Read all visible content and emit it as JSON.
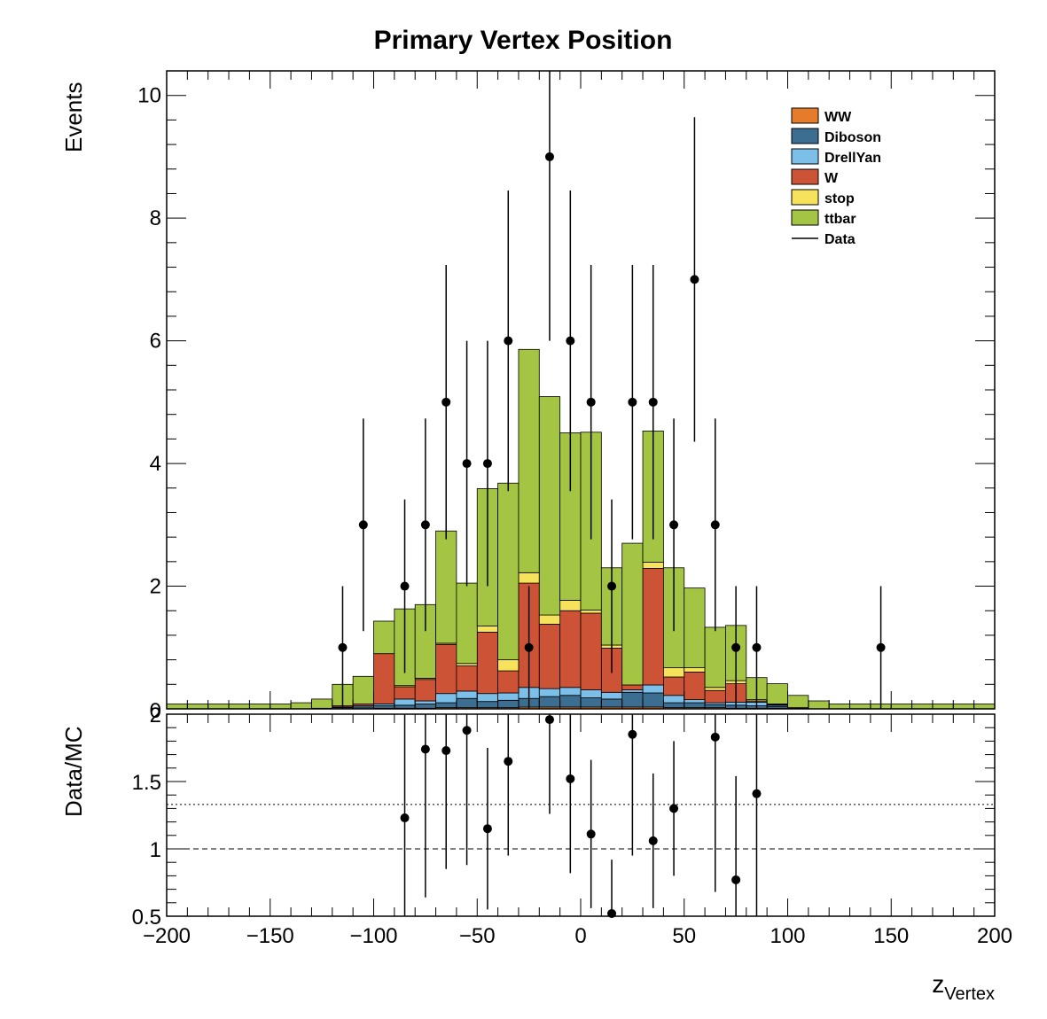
{
  "chart_data": [
    {
      "panel": "main",
      "type": "bar",
      "stacked": true,
      "title": "Primary Vertex Position",
      "ylabel": "Events",
      "xlim": [
        -200,
        200
      ],
      "ylim": [
        0,
        10.4
      ],
      "bin_edges": [
        -200,
        -190,
        -180,
        -170,
        -160,
        -150,
        -140,
        -130,
        -120,
        -110,
        -100,
        -90,
        -80,
        -70,
        -60,
        -50,
        -40,
        -30,
        -20,
        -10,
        0,
        10,
        20,
        30,
        40,
        50,
        60,
        70,
        80,
        90,
        100,
        110,
        120,
        130,
        140,
        150,
        160,
        170,
        180,
        190,
        200
      ],
      "x_ticks": [
        -200,
        -150,
        -100,
        -50,
        0,
        50,
        100,
        150,
        200
      ],
      "x_tick_labels": [
        "−200",
        "−150",
        "−100",
        "−50",
        "0",
        "50",
        "100",
        "150",
        "200"
      ],
      "y_ticks": [
        2,
        4,
        6,
        8,
        10
      ],
      "y_tick_labels": [
        "2",
        "4",
        "6",
        "8",
        "10"
      ],
      "series": [
        {
          "name": "WW",
          "color": "#e57c2b",
          "values": [
            0,
            0,
            0,
            0,
            0,
            0,
            0,
            0,
            0,
            0,
            0.01,
            0.01,
            0.01,
            0.02,
            0.02,
            0.02,
            0.02,
            0.03,
            0.03,
            0.03,
            0.03,
            0.03,
            0.03,
            0.03,
            0.02,
            0.02,
            0.02,
            0.01,
            0.01,
            0.01,
            0,
            0,
            0,
            0,
            0,
            0,
            0,
            0,
            0,
            0
          ]
        },
        {
          "name": "Diboson",
          "color": "#3b6e91",
          "values": [
            0,
            0,
            0,
            0,
            0,
            0,
            0,
            0.01,
            0.02,
            0.03,
            0.04,
            0.05,
            0.07,
            0.08,
            0.15,
            0.1,
            0.12,
            0.14,
            0.17,
            0.19,
            0.15,
            0.13,
            0.24,
            0.23,
            0.08,
            0.08,
            0.05,
            0.05,
            0.04,
            0.03,
            0.01,
            0,
            0,
            0,
            0,
            0,
            0,
            0,
            0,
            0
          ]
        },
        {
          "name": "DrellYan",
          "color": "#7cbfe8",
          "values": [
            0,
            0,
            0,
            0,
            0,
            0,
            0,
            0,
            0.01,
            0.02,
            0.03,
            0.1,
            0.05,
            0.15,
            0.12,
            0.13,
            0.12,
            0.18,
            0.13,
            0.13,
            0.13,
            0.11,
            0.04,
            0.13,
            0.12,
            0.05,
            0.03,
            0.05,
            0.06,
            0.02,
            0.01,
            0,
            0,
            0,
            0,
            0,
            0,
            0,
            0,
            0
          ]
        },
        {
          "name": "W",
          "color": "#cd5337",
          "values": [
            0,
            0,
            0,
            0,
            0,
            0,
            0,
            0,
            0.02,
            0.03,
            0.82,
            0.2,
            0.35,
            0.8,
            0.41,
            1.0,
            0.36,
            1.7,
            1.05,
            1.25,
            1.25,
            0.72,
            0.08,
            1.9,
            0.3,
            0.45,
            0.2,
            0.3,
            0.02,
            0.01,
            0,
            0,
            0,
            0,
            0,
            0,
            0,
            0,
            0,
            0
          ]
        },
        {
          "name": "stop",
          "color": "#f6e25b",
          "values": [
            0,
            0,
            0,
            0,
            0,
            0,
            0,
            0,
            0,
            0,
            0,
            0.02,
            0.02,
            0.02,
            0.04,
            0.1,
            0.18,
            0.17,
            0.15,
            0.17,
            0.05,
            0.05,
            0,
            0.1,
            0.15,
            0.07,
            0.05,
            0.05,
            0.02,
            0.01,
            0,
            0,
            0,
            0,
            0,
            0,
            0,
            0,
            0,
            0
          ]
        },
        {
          "name": "ttbar",
          "color": "#a4c443",
          "values": [
            0.08,
            0.08,
            0.08,
            0.08,
            0.08,
            0.08,
            0.1,
            0.15,
            0.35,
            0.45,
            0.53,
            1.25,
            1.2,
            1.83,
            1.31,
            2.24,
            2.88,
            3.64,
            3.56,
            2.73,
            2.9,
            1.26,
            2.31,
            2.14,
            1.63,
            1.3,
            0.98,
            0.9,
            0.36,
            0.33,
            0.2,
            0.13,
            0.08,
            0.08,
            0.08,
            0.08,
            0.08,
            0.08,
            0.08,
            0.08
          ]
        }
      ],
      "data": {
        "name": "Data",
        "color": "#000000",
        "x": [
          -115,
          -105,
          -85,
          -75,
          -65,
          -55,
          -45,
          -35,
          -25,
          -15,
          -5,
          5,
          15,
          25,
          35,
          45,
          55,
          65,
          75,
          85,
          145
        ],
        "y": [
          1,
          3,
          2,
          3,
          5,
          4,
          4,
          6,
          1,
          9,
          6,
          5,
          2,
          5,
          5,
          3,
          7,
          3,
          1,
          1,
          1
        ]
      },
      "legend": {
        "position": "top-right",
        "entries": [
          "WW",
          "Diboson",
          "DrellYan",
          "W",
          "stop",
          "ttbar",
          "Data"
        ]
      }
    },
    {
      "panel": "ratio",
      "type": "scatter",
      "ylabel": "Data/MC",
      "xlabel_main": "z",
      "xlabel_sub": "Vertex",
      "xlim": [
        -200,
        200
      ],
      "ylim": [
        0.5,
        2.0
      ],
      "y_ticks": [
        0.5,
        1,
        1.5,
        2
      ],
      "y_tick_labels": [
        "0.5",
        "1",
        "1.5",
        "2"
      ],
      "reference_lines": [
        {
          "y": 1.0,
          "style": "dashed"
        },
        {
          "y": 1.33,
          "style": "dotted"
        }
      ],
      "points": {
        "x": [
          -85,
          -75,
          -65,
          -55,
          -45,
          -35,
          -15,
          -5,
          5,
          15,
          25,
          35,
          45,
          65,
          75,
          85
        ],
        "y": [
          1.23,
          1.74,
          1.73,
          1.88,
          1.15,
          1.65,
          1.96,
          1.52,
          1.11,
          0.52,
          1.85,
          1.06,
          1.3,
          1.83,
          0.77,
          1.41
        ],
        "err_lo": [
          1.0,
          1.1,
          0.88,
          1.0,
          0.6,
          0.7,
          0.7,
          0.7,
          0.55,
          0.4,
          0.9,
          0.5,
          0.5,
          1.15,
          0.77,
          1.0
        ],
        "err_hi": [
          0.9,
          1.0,
          0.78,
          0.85,
          0.6,
          0.7,
          0.7,
          0.65,
          0.55,
          0.4,
          0.9,
          0.5,
          0.5,
          1.0,
          0.77,
          1.0
        ]
      }
    }
  ]
}
